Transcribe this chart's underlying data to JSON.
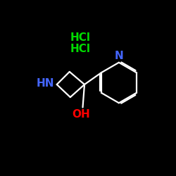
{
  "background_color": "#000000",
  "hcl1_text": "HCl",
  "hcl2_text": "HCl",
  "hcl_color": "#00dd00",
  "hn_text": "HN",
  "hn_color": "#4466ff",
  "n_pyridine_text": "N",
  "n_color": "#4466ff",
  "oh_text": "OH",
  "oh_color": "#ff0000",
  "bond_color": "#ffffff",
  "bond_lw": 1.6,
  "font_size": 11,
  "hcl_font_size": 11
}
